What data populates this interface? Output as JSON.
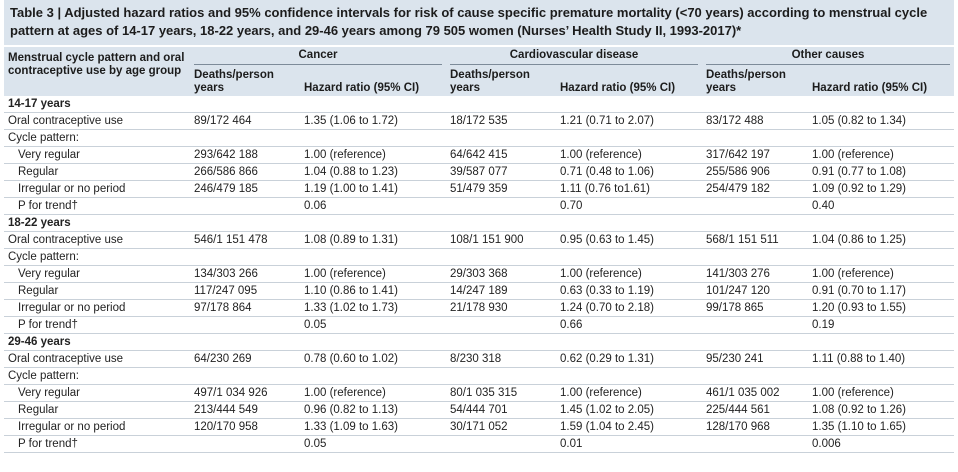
{
  "title": "Table 3 | Adjusted hazard ratios and 95% confidence intervals for risk of cause specific premature mortality (<70 years) according to menstrual cycle pattern at ages of 14-17 years, 18-22 years, and 29-46 years among 79 505 women (Nurses’ Health Study II, 1993-2017)*",
  "header": {
    "row_label": "Menstrual cycle pattern and oral contraceptive use by age group",
    "groups": [
      "Cancer",
      "Cardiovascular disease",
      "Other causes"
    ],
    "subheaders": [
      "Deaths/person years",
      "Hazard ratio (95% CI)",
      "Deaths/person years",
      "Hazard ratio (95% CI)",
      "Deaths/person years",
      "Hazard ratio (95% CI)"
    ]
  },
  "sections": [
    {
      "label": "14-17 years",
      "rows": [
        {
          "label": "Oral contraceptive use",
          "cells": [
            "89/172 464",
            "1.35 (1.06 to 1.72)",
            "18/172 535",
            "1.21 (0.71 to 2.07)",
            "83/172 488",
            "1.05 (0.82 to 1.34)"
          ]
        },
        {
          "label": "Cycle pattern:"
        },
        {
          "label": "Very regular",
          "cells": [
            "293/642 188",
            "1.00 (reference)",
            "64/642 415",
            "1.00 (reference)",
            "317/642 197",
            "1.00 (reference)"
          ]
        },
        {
          "label": "Regular",
          "cells": [
            "266/586 866",
            "1.04 (0.88 to 1.23)",
            "39/587 077",
            "0.71 (0.48 to 1.06)",
            "255/586 906",
            "0.91 (0.77 to 1.08)"
          ]
        },
        {
          "label": "Irregular or no period",
          "cells": [
            "246/479 185",
            "1.19 (1.00 to 1.41)",
            "51/479 359",
            "1.11 (0.76 to1.61)",
            "254/479 182",
            "1.09 (0.92 to 1.29)"
          ]
        },
        {
          "label": "P for trend†",
          "cells": [
            null,
            "0.06",
            null,
            "0.70",
            null,
            "0.40"
          ]
        }
      ]
    },
    {
      "label": "18-22 years",
      "rows": [
        {
          "label": "Oral contraceptive use",
          "cells": [
            "546/1 151 478",
            "1.08 (0.89 to 1.31)",
            "108/1 151 900",
            "0.95 (0.63 to 1.45)",
            "568/1 151 511",
            "1.04 (0.86 to 1.25)"
          ]
        },
        {
          "label": "Cycle pattern:"
        },
        {
          "label": "Very regular",
          "cells": [
            "134/303 266",
            "1.00 (reference)",
            "29/303 368",
            "1.00 (reference)",
            "141/303 276",
            "1.00 (reference)"
          ]
        },
        {
          "label": "Regular",
          "cells": [
            "117/247 095",
            "1.10 (0.86 to 1.41)",
            "14/247 189",
            "0.63 (0.33 to 1.19)",
            "101/247 120",
            "0.91 (0.70 to 1.17)"
          ]
        },
        {
          "label": "Irregular or no period",
          "cells": [
            "97/178 864",
            "1.33 (1.02 to 1.73)",
            "21/178 930",
            "1.24 (0.70 to 2.18)",
            "99/178 865",
            "1.20 (0.93 to 1.55)"
          ]
        },
        {
          "label": "P for trend†",
          "cells": [
            null,
            "0.05",
            null,
            "0.66",
            null,
            "0.19"
          ]
        }
      ]
    },
    {
      "label": "29-46 years",
      "rows": [
        {
          "label": "Oral contraceptive use",
          "cells": [
            "64/230 269",
            "0.78 (0.60 to 1.02)",
            "8/230 318",
            "0.62 (0.29 to 1.31)",
            "95/230 241",
            "1.11 (0.88 to 1.40)"
          ]
        },
        {
          "label": "Cycle pattern:"
        },
        {
          "label": "Very regular",
          "cells": [
            "497/1 034 926",
            "1.00 (reference)",
            "80/1 035 315",
            "1.00 (reference)",
            "461/1 035 002",
            "1.00 (reference)"
          ]
        },
        {
          "label": "Regular",
          "cells": [
            "213/444 549",
            "0.96 (0.82 to 1.13)",
            "54/444 701",
            "1.45 (1.02 to 2.05)",
            "225/444 561",
            "1.08 (0.92 to 1.26)"
          ]
        },
        {
          "label": "Irregular or no period",
          "cells": [
            "120/170 958",
            "1.33 (1.09 to 1.63)",
            "30/171 052",
            "1.59 (1.04 to 2.45)",
            "128/170 968",
            "1.35 (1.10 to 1.65)"
          ]
        },
        {
          "label": "P for trend†",
          "cells": [
            null,
            "0.05",
            null,
            "0.01",
            null,
            "0.006"
          ]
        }
      ]
    }
  ]
}
